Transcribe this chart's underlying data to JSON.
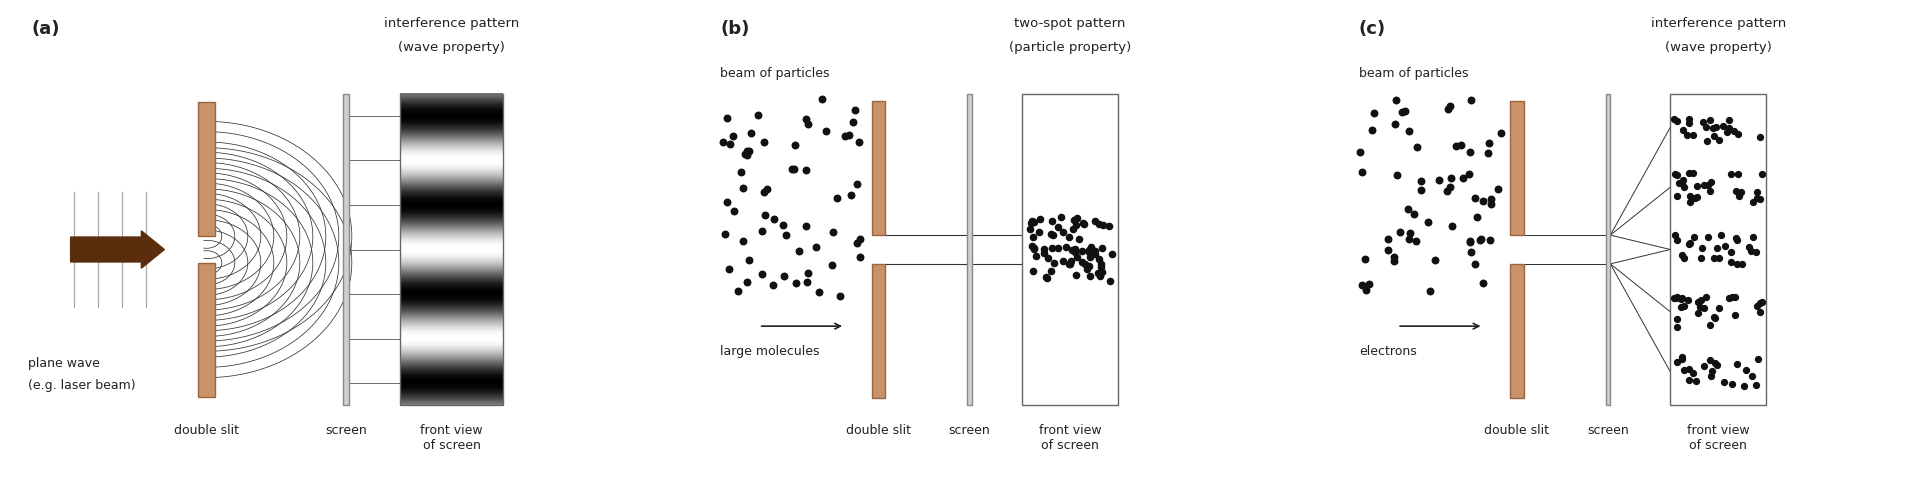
{
  "bg_color": "#ffffff",
  "panel_labels": [
    "(a)",
    "(b)",
    "(c)"
  ],
  "slit_color": "#c8926a",
  "slit_edge_color": "#9b6540",
  "dot_color": "#111111",
  "text_color": "#222222",
  "arrow_color": "#5a2d0c",
  "label_fontsize": 9,
  "panel_label_fontsize": 13,
  "title_fontsize": 9.5
}
